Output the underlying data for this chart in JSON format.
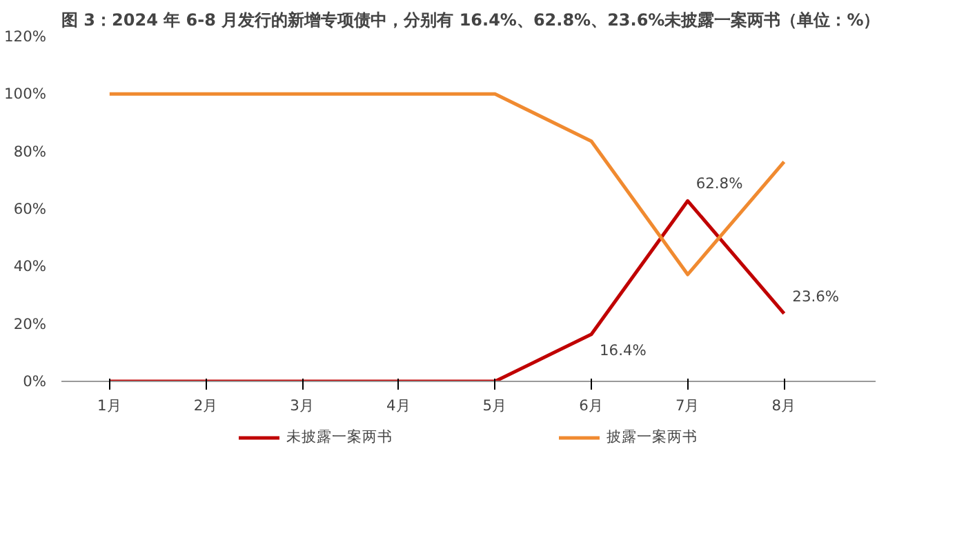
{
  "chart_data": {
    "type": "line",
    "title": "图 3：2024 年 6-8 月发行的新增专项债中，分别有 16.4%、62.8%、23.6%未披露一案两书（单位：%）",
    "categories": [
      "1月",
      "2月",
      "3月",
      "4月",
      "5月",
      "6月",
      "7月",
      "8月"
    ],
    "series": [
      {
        "name": "未披露一案两书",
        "color": "#c00000",
        "values": [
          0,
          0,
          0,
          0,
          0,
          16.4,
          62.8,
          23.6
        ],
        "value_labels": [
          null,
          null,
          null,
          null,
          null,
          "16.4%",
          "62.8%",
          "23.6%"
        ]
      },
      {
        "name": "披露一案两书",
        "color": "#f08a30",
        "values": [
          100,
          100,
          100,
          100,
          100,
          83.6,
          37.2,
          76.4
        ]
      }
    ],
    "ylim": [
      0,
      120
    ],
    "yticks": [
      {
        "value": 0,
        "label": "0%"
      },
      {
        "value": 20,
        "label": "20%"
      },
      {
        "value": 40,
        "label": "40%"
      },
      {
        "value": 60,
        "label": "60%"
      },
      {
        "value": 80,
        "label": "80%"
      },
      {
        "value": 100,
        "label": "100%"
      },
      {
        "value": 120,
        "label": "120%"
      }
    ],
    "grid": false,
    "legend": "bottom",
    "marker": "none",
    "line_style": "solid"
  }
}
